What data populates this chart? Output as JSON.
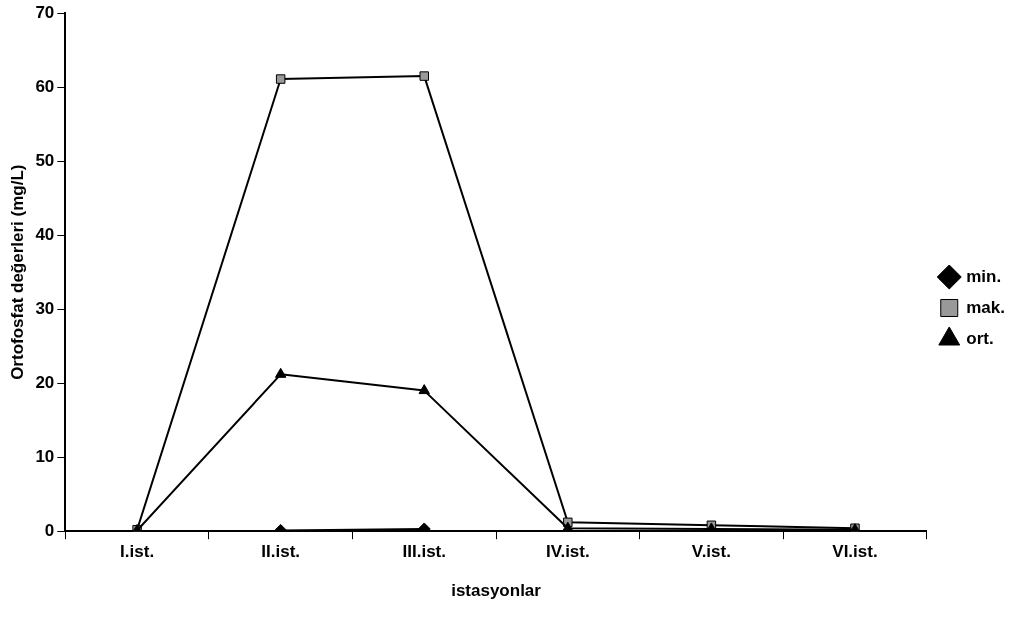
{
  "chart_data": {
    "type": "line",
    "xlabel": "istasyonlar",
    "ylabel": "Ortofosfat değerleri (mg/L)",
    "categories": [
      "I.ist.",
      "II.ist.",
      "III.ist.",
      "IV.ist.",
      "V.ist.",
      "VI.ist."
    ],
    "series": [
      {
        "name": "min.",
        "color": "#000000",
        "marker": "diamond",
        "values": [
          null,
          0.1,
          0.3,
          null,
          null,
          null
        ]
      },
      {
        "name": "mak.",
        "color": "#999999",
        "marker": "square",
        "values": [
          0.2,
          61.1,
          61.5,
          1.2,
          0.8,
          0.4
        ]
      },
      {
        "name": "ort.",
        "color": "#000000",
        "marker": "triangle",
        "values": [
          0.1,
          21.2,
          19,
          0.4,
          0.3,
          0.2
        ]
      }
    ],
    "ylim": [
      0,
      70
    ],
    "yticks": [
      0,
      10,
      20,
      30,
      40,
      50,
      60,
      70
    ],
    "grid": false,
    "legend": "right",
    "line_style": "solid"
  }
}
